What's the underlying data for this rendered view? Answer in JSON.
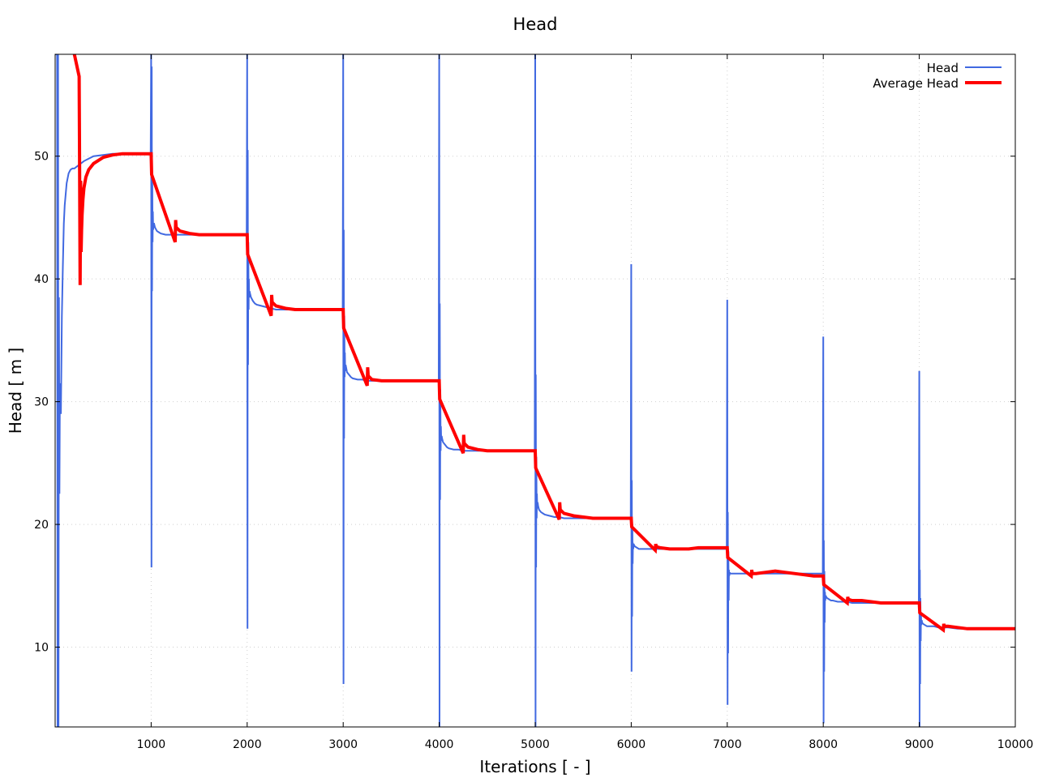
{
  "chart_data": {
    "type": "line",
    "title": "Head",
    "xlabel": "Iterations [ - ]",
    "ylabel": "Head [ m ]",
    "xlim": [
      0,
      10000
    ],
    "ylim": [
      3.5,
      58.3
    ],
    "x_ticks": [
      1000,
      2000,
      3000,
      4000,
      5000,
      6000,
      7000,
      8000,
      9000,
      10000
    ],
    "y_ticks": [
      10,
      20,
      30,
      40,
      50
    ],
    "grid": true,
    "legend_position": "top-right",
    "series": [
      {
        "name": "Head",
        "color": "#4169e1",
        "line_width": 2,
        "x": [
          0,
          20,
          25,
          30,
          35,
          40,
          45,
          50,
          55,
          60,
          65,
          70,
          80,
          90,
          100,
          120,
          140,
          160,
          180,
          200,
          250,
          300,
          350,
          400,
          500,
          600,
          700,
          800,
          900,
          995,
          1000,
          1003,
          1006,
          1009,
          1012,
          1015,
          1018,
          1021,
          1025,
          1030,
          1040,
          1060,
          1080,
          1100,
          1150,
          1200,
          1250,
          1300,
          1400,
          1500,
          1600,
          1700,
          1800,
          1900,
          1995,
          2000,
          2003,
          2006,
          2009,
          2012,
          2015,
          2018,
          2021,
          2025,
          2030,
          2040,
          2060,
          2080,
          2100,
          2150,
          2200,
          2250,
          2300,
          2400,
          2500,
          2600,
          2700,
          2800,
          2900,
          2995,
          3000,
          3003,
          3006,
          3009,
          3012,
          3015,
          3018,
          3021,
          3025,
          3030,
          3040,
          3060,
          3080,
          3100,
          3150,
          3200,
          3250,
          3300,
          3400,
          3500,
          3600,
          3700,
          3800,
          3900,
          3995,
          4000,
          4003,
          4006,
          4009,
          4012,
          4015,
          4018,
          4021,
          4025,
          4030,
          4040,
          4060,
          4080,
          4100,
          4150,
          4200,
          4250,
          4300,
          4400,
          4500,
          4600,
          4700,
          4800,
          4900,
          4995,
          5000,
          5003,
          5006,
          5009,
          5012,
          5015,
          5018,
          5021,
          5025,
          5030,
          5040,
          5060,
          5080,
          5100,
          5150,
          5200,
          5250,
          5300,
          5400,
          5500,
          5600,
          5700,
          5800,
          5900,
          5995,
          6000,
          6003,
          6006,
          6009,
          6012,
          6015,
          6018,
          6021,
          6025,
          6030,
          6040,
          6060,
          6080,
          6100,
          6150,
          6200,
          6250,
          6300,
          6400,
          6500,
          6600,
          6700,
          6800,
          6900,
          6995,
          7000,
          7003,
          7006,
          7009,
          7012,
          7015,
          7018,
          7021,
          7025,
          7030,
          7040,
          7060,
          7080,
          7100,
          7150,
          7200,
          7250,
          7300,
          7400,
          7500,
          7600,
          7700,
          7800,
          7900,
          7995,
          8000,
          8003,
          8006,
          8009,
          8012,
          8015,
          8018,
          8021,
          8025,
          8030,
          8040,
          8060,
          8080,
          8100,
          8150,
          8200,
          8250,
          8300,
          8400,
          8500,
          8600,
          8700,
          8800,
          8900,
          8995,
          9000,
          9003,
          9006,
          9009,
          9012,
          9015,
          9018,
          9021,
          9025,
          9030,
          9040,
          9060,
          9080,
          9100,
          9150,
          9200,
          9250,
          9300,
          9400,
          9500,
          9600,
          9700,
          9800,
          9900,
          10000
        ],
        "y": [
          58.3,
          58.3,
          3.5,
          58.3,
          3.5,
          38.5,
          22.5,
          31.5,
          30,
          29,
          33,
          37,
          41,
          44.5,
          46,
          47.8,
          48.6,
          48.9,
          49,
          49,
          49.3,
          49.6,
          49.8,
          50,
          50.1,
          50.2,
          50.2,
          50.2,
          50.2,
          50.2,
          58.3,
          16.5,
          57.3,
          39,
          48,
          43,
          45.5,
          44,
          44.5,
          44.5,
          44.2,
          43.9,
          43.8,
          43.7,
          43.6,
          43.6,
          43.6,
          43.6,
          43.6,
          43.6,
          43.6,
          43.6,
          43.6,
          43.6,
          43.6,
          58.3,
          11.5,
          50.5,
          33,
          43,
          37.5,
          40,
          38.5,
          39,
          38.8,
          38.5,
          38.2,
          38,
          37.9,
          37.8,
          37.7,
          37.6,
          37.5,
          37.5,
          37.5,
          37.5,
          37.5,
          37.5,
          37.5,
          37.5,
          58.3,
          7,
          44,
          27,
          37,
          32,
          34,
          32.5,
          33,
          32.8,
          32.4,
          32.2,
          32,
          31.9,
          31.8,
          31.8,
          31.7,
          31.7,
          31.7,
          31.7,
          31.7,
          31.7,
          31.7,
          31.7,
          31.7,
          58.3,
          3.5,
          38,
          22,
          31,
          26,
          28,
          26.8,
          27.2,
          27,
          26.7,
          26.5,
          26.3,
          26.2,
          26.1,
          26.1,
          26,
          26,
          26,
          26,
          26,
          26,
          26,
          26,
          26,
          58.3,
          3.5,
          32.2,
          16.5,
          25.5,
          20.5,
          22.5,
          21.3,
          21.8,
          21.5,
          21.2,
          21,
          20.9,
          20.8,
          20.7,
          20.6,
          20.6,
          20.5,
          20.5,
          20.5,
          20.5,
          20.5,
          20.5,
          20.5,
          20.5,
          41.2,
          8,
          23.6,
          12.5,
          20,
          16.8,
          18.5,
          18,
          18.4,
          18.3,
          18.2,
          18.1,
          18,
          18,
          18,
          18,
          18,
          18,
          18,
          18,
          18,
          18,
          18,
          18,
          18,
          38.3,
          5.3,
          21,
          9.5,
          17.8,
          13.8,
          16.3,
          15.8,
          16.1,
          16,
          16,
          16,
          16,
          16,
          16,
          16,
          16,
          16,
          16,
          16,
          16,
          16,
          16,
          16,
          16,
          35.3,
          3.8,
          18.7,
          8,
          16.2,
          12,
          14.5,
          13.8,
          14.2,
          14.1,
          14,
          13.9,
          13.8,
          13.8,
          13.7,
          13.7,
          13.7,
          13.6,
          13.6,
          13.6,
          13.6,
          13.6,
          13.6,
          13.6,
          13.6,
          32.5,
          3.5,
          16.3,
          7,
          14,
          10.5,
          12.8,
          11.8,
          12.2,
          12,
          11.9,
          11.8,
          11.7,
          11.7,
          11.7,
          11.6,
          11.6,
          11.6,
          11.5,
          11.5,
          11.5,
          11.5,
          11.5,
          11.5,
          11.5
        ]
      },
      {
        "name": "Average Head",
        "color": "#ff0000",
        "line_width": 4,
        "x": [
          200,
          250,
          255,
          260,
          265,
          270,
          275,
          280,
          290,
          300,
          320,
          350,
          400,
          500,
          600,
          700,
          800,
          900,
          1000,
          1005,
          1250,
          1255,
          1260,
          1300,
          1400,
          1500,
          1600,
          1700,
          1800,
          1900,
          2000,
          2005,
          2250,
          2255,
          2260,
          2300,
          2400,
          2500,
          2600,
          2700,
          2800,
          2900,
          3000,
          3005,
          3250,
          3255,
          3260,
          3300,
          3400,
          3500,
          3600,
          3700,
          3800,
          3900,
          4000,
          4005,
          4250,
          4255,
          4260,
          4300,
          4400,
          4500,
          4600,
          4700,
          4800,
          4900,
          5000,
          5005,
          5250,
          5255,
          5260,
          5300,
          5400,
          5500,
          5600,
          5700,
          5800,
          5900,
          6000,
          6005,
          6250,
          6255,
          6260,
          6300,
          6400,
          6500,
          6600,
          6700,
          6800,
          6900,
          7000,
          7005,
          7250,
          7255,
          7260,
          7300,
          7400,
          7500,
          7600,
          7700,
          7800,
          7900,
          8000,
          8005,
          8250,
          8255,
          8260,
          8300,
          8400,
          8500,
          8600,
          8700,
          8800,
          8900,
          9000,
          9005,
          9250,
          9255,
          9260,
          9300,
          9400,
          9500,
          9600,
          9700,
          9800,
          9900,
          10000
        ],
        "y": [
          58.3,
          56.5,
          48.5,
          39.5,
          48,
          42.2,
          44,
          45.2,
          46.5,
          47.4,
          48.3,
          48.9,
          49.4,
          49.9,
          50.1,
          50.2,
          50.2,
          50.2,
          50.2,
          48.5,
          43,
          44.8,
          44.2,
          43.9,
          43.7,
          43.6,
          43.6,
          43.6,
          43.6,
          43.6,
          43.6,
          42,
          37,
          38.7,
          38.1,
          37.8,
          37.6,
          37.5,
          37.5,
          37.5,
          37.5,
          37.5,
          37.5,
          36,
          31.3,
          32.8,
          32.1,
          31.8,
          31.7,
          31.7,
          31.7,
          31.7,
          31.7,
          31.7,
          31.7,
          30.2,
          25.8,
          27.3,
          26.6,
          26.3,
          26.1,
          26,
          26,
          26,
          26,
          26,
          26,
          24.6,
          20.4,
          21.8,
          21.2,
          20.9,
          20.7,
          20.6,
          20.5,
          20.5,
          20.5,
          20.5,
          20.5,
          19.8,
          17.9,
          18.4,
          18.2,
          18.1,
          18,
          18,
          18,
          18.1,
          18.1,
          18.1,
          18.1,
          17.3,
          15.8,
          16.3,
          16,
          16,
          16.1,
          16.2,
          16.1,
          16,
          15.9,
          15.8,
          15.8,
          15.1,
          13.6,
          14.1,
          13.9,
          13.8,
          13.8,
          13.7,
          13.6,
          13.6,
          13.6,
          13.6,
          13.6,
          12.8,
          11.4,
          11.9,
          11.7,
          11.7,
          11.6,
          11.5,
          11.5,
          11.5,
          11.5,
          11.5,
          11.5
        ]
      }
    ]
  }
}
